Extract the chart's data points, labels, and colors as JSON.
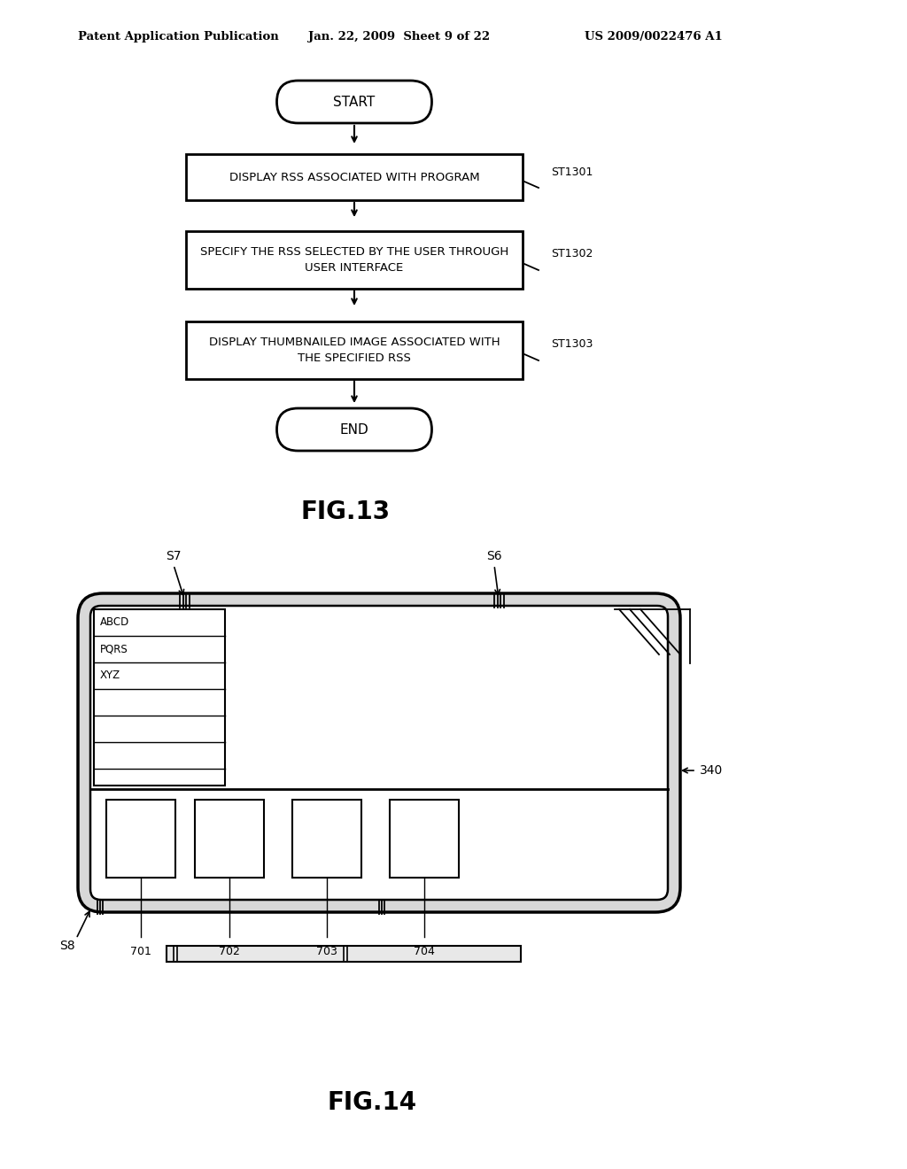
{
  "bg_color": "#ffffff",
  "header_text": "Patent Application Publication",
  "header_date": "Jan. 22, 2009  Sheet 9 of 22",
  "header_patent": "US 2009/0022476 A1",
  "fig13_title": "FIG.13",
  "fig14_title": "FIG.14",
  "flowchart": {
    "start_text": "START",
    "end_text": "END",
    "boxes": [
      {
        "text": "DISPLAY RSS ASSOCIATED WITH PROGRAM",
        "label": "ST1301"
      },
      {
        "text": "SPECIFY THE RSS SELECTED BY THE USER THROUGH\nUSER INTERFACE",
        "label": "ST1302"
      },
      {
        "text": "DISPLAY THUMBNAILED IMAGE ASSOCIATED WITH\nTHE SPECIFIED RSS",
        "label": "ST1303"
      }
    ]
  },
  "fig14": {
    "label_340": "340",
    "label_S6": "S6",
    "label_S7": "S7",
    "label_S8": "S8",
    "list_items": [
      "ABCD",
      "PQRS",
      "XYZ"
    ],
    "thumb_labels": [
      "701",
      "702",
      "703",
      "704"
    ]
  }
}
